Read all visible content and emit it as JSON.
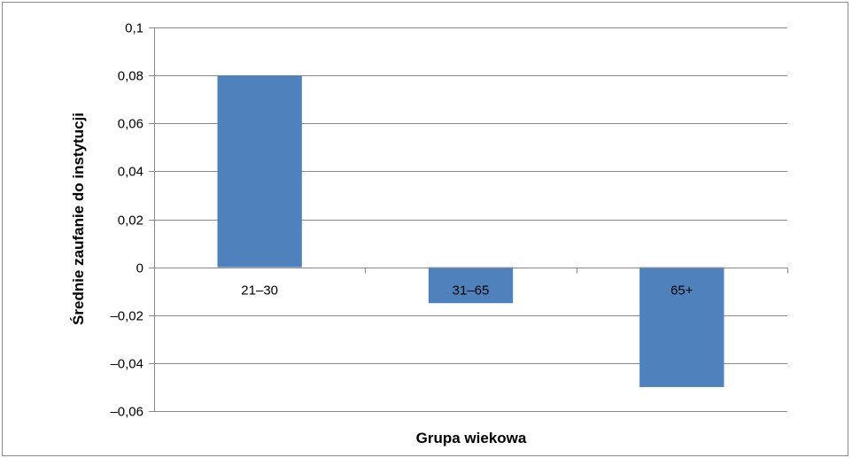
{
  "chart_data": {
    "type": "bar",
    "title": "",
    "xlabel": "Grupa wiekowa",
    "ylabel": "Średnie zaufanie do instytucji",
    "categories": [
      "21–30",
      "31–65",
      "65+"
    ],
    "values": [
      0.08,
      -0.015,
      -0.05
    ],
    "ylim": [
      -0.06,
      0.1
    ],
    "yticks": [
      0.1,
      0.08,
      0.06,
      0.04,
      0.02,
      0,
      -0.02,
      -0.04,
      -0.06
    ],
    "ytick_labels": [
      "0,1",
      "0,08",
      "0,06",
      "0,04",
      "0,02",
      "0",
      "–0,02",
      "–0,04",
      "–0,06"
    ],
    "grid": true,
    "legend": "none",
    "bar_color": "#4f81bd",
    "grid_color": "#888888"
  }
}
